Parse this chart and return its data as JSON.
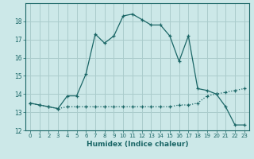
{
  "xlabel": "Humidex (Indice chaleur)",
  "background_color": "#cce8e8",
  "grid_color": "#aacccc",
  "line_color": "#1a6666",
  "x_hours": [
    0,
    1,
    2,
    3,
    4,
    5,
    6,
    7,
    8,
    9,
    10,
    11,
    12,
    13,
    14,
    15,
    16,
    17,
    18,
    19,
    20,
    21,
    22,
    23
  ],
  "humidex": [
    13.5,
    13.4,
    13.3,
    13.2,
    13.9,
    13.9,
    15.1,
    17.3,
    16.8,
    17.2,
    18.3,
    18.4,
    18.1,
    17.8,
    17.8,
    17.2,
    15.8,
    17.2,
    14.3,
    14.2,
    14.0,
    13.3,
    12.3,
    12.3
  ],
  "dew": [
    13.5,
    13.4,
    13.3,
    13.2,
    13.3,
    13.3,
    13.3,
    13.3,
    13.3,
    13.3,
    13.3,
    13.3,
    13.3,
    13.3,
    13.3,
    13.3,
    13.4,
    13.4,
    13.5,
    13.9,
    14.0,
    14.1,
    14.2,
    14.3
  ],
  "ylim": [
    12,
    19
  ],
  "yticks": [
    12,
    13,
    14,
    15,
    16,
    17,
    18
  ],
  "xticks": [
    0,
    1,
    2,
    3,
    4,
    5,
    6,
    7,
    8,
    9,
    10,
    11,
    12,
    13,
    14,
    15,
    16,
    17,
    18,
    19,
    20,
    21,
    22,
    23
  ]
}
